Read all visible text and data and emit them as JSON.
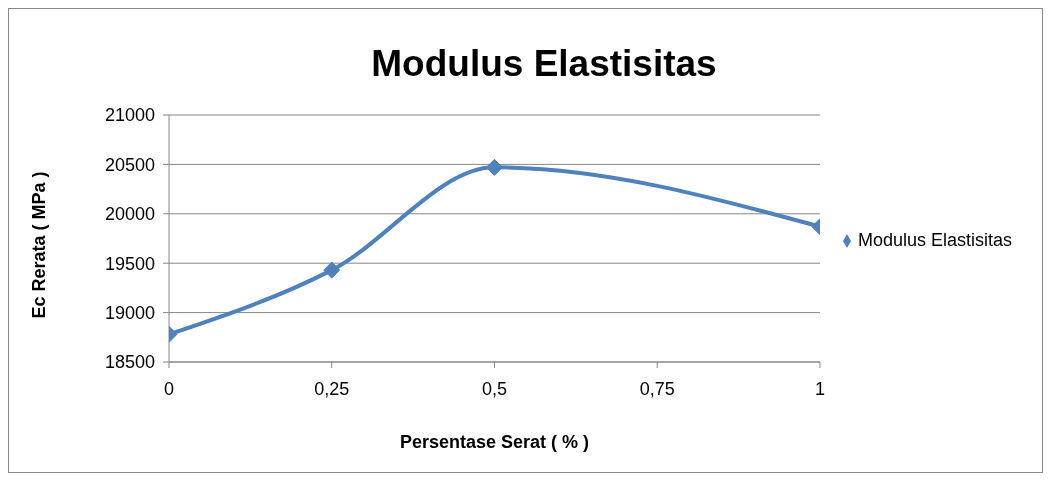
{
  "chart_data": {
    "type": "line",
    "title": "Modulus Elastisitas",
    "xlabel": "Persentase Serat ( % )",
    "ylabel": "Ec Rerata ( MPa )",
    "x": [
      0,
      0.25,
      0.5,
      1
    ],
    "series": [
      {
        "name": "Modulus Elastisitas",
        "color": "#4f81bd",
        "values": [
          18780,
          19430,
          20470,
          19870
        ]
      }
    ],
    "xlim": [
      0,
      1
    ],
    "xticks": [
      0,
      {
        "value": 0.25,
        "label": "0,25"
      },
      {
        "value": 0.5,
        "label": "0,5"
      },
      {
        "value": 0.75,
        "label": "0,75"
      },
      1
    ],
    "ylim": [
      18500,
      21000
    ],
    "yticks": [
      18500,
      19000,
      19500,
      20000,
      20500,
      21000
    ],
    "grid": "y",
    "legend": "right",
    "marker": "diamond",
    "line_style": "solid"
  }
}
